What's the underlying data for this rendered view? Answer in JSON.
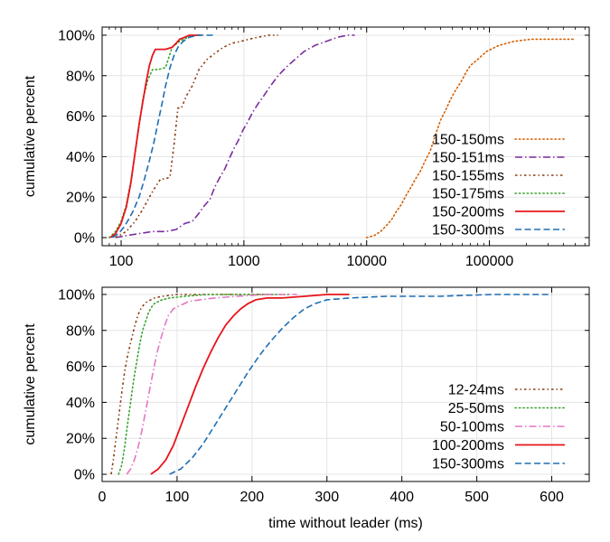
{
  "chart_data": [
    {
      "type": "line",
      "xscale": "log",
      "xlim": [
        70,
        650000
      ],
      "ylim": [
        -4,
        104
      ],
      "xticks": [
        100,
        1000,
        10000,
        100000
      ],
      "xtick_labels": [
        "100",
        "1000",
        "10000",
        "100000"
      ],
      "yticks": [
        0,
        20,
        40,
        60,
        80,
        100
      ],
      "ytick_labels": [
        "0%",
        "20%",
        "40%",
        "60%",
        "80%",
        "100%"
      ],
      "ylabel": "cumulative percent",
      "xlabel": "",
      "grid": true,
      "legend_position": "bottom-right",
      "series": [
        {
          "name": "150-150ms",
          "color": "#d55e00",
          "style": "dotted",
          "x": [
            10000,
            11500,
            13000,
            14500,
            16000,
            17500,
            19000,
            21000,
            23000,
            25000,
            27500,
            30000,
            33000,
            36000,
            40000,
            44000,
            48000,
            52000,
            56000,
            60000,
            65000,
            70000,
            80000,
            95000,
            120000,
            160000,
            220000,
            300000,
            400000,
            500000
          ],
          "y": [
            0,
            1,
            3,
            6,
            9,
            13,
            16,
            21,
            25,
            29,
            33,
            38,
            43,
            50,
            58,
            63,
            68,
            72,
            75,
            78,
            82,
            85,
            88,
            92,
            95,
            97,
            98,
            98,
            98,
            98
          ]
        },
        {
          "name": "150-151ms",
          "color": "#7b2da0",
          "style": "dashdot",
          "x": [
            90,
            110,
            140,
            180,
            230,
            280,
            330,
            380,
            430,
            480,
            530,
            580,
            640,
            700,
            760,
            830,
            900,
            980,
            1070,
            1180,
            1300,
            1450,
            1650,
            1900,
            2200,
            2600,
            3100,
            3800,
            4700,
            5800,
            7000,
            8000
          ],
          "y": [
            0,
            1,
            2,
            3,
            3,
            4,
            7,
            8,
            12,
            16,
            19,
            25,
            30,
            34,
            39,
            44,
            48,
            53,
            57,
            62,
            66,
            70,
            75,
            80,
            84,
            88,
            92,
            95,
            97,
            99,
            100,
            100
          ]
        },
        {
          "name": "150-155ms",
          "color": "#8b3a0e",
          "style": "dashdotted",
          "x": [
            90,
            110,
            130,
            150,
            170,
            190,
            210,
            230,
            250,
            270,
            290,
            310,
            340,
            380,
            430,
            500,
            580,
            680,
            800,
            950,
            1100,
            1300,
            1600,
            1900
          ],
          "y": [
            0,
            3,
            8,
            14,
            20,
            25,
            29,
            29,
            30,
            46,
            64,
            64,
            70,
            75,
            83,
            88,
            91,
            94,
            96,
            97,
            98,
            99,
            100,
            100
          ]
        },
        {
          "name": "150-175ms",
          "color": "#3aa52f",
          "style": "dotted",
          "x": [
            80,
            90,
            100,
            110,
            120,
            130,
            140,
            150,
            165,
            180,
            200,
            230,
            260,
            300,
            350,
            420
          ],
          "y": [
            0,
            3,
            8,
            16,
            28,
            42,
            55,
            68,
            78,
            83,
            83,
            84,
            94,
            97,
            99,
            100
          ]
        },
        {
          "name": "150-200ms",
          "color": "#e8141a",
          "style": "solid",
          "x": [
            82,
            90,
            100,
            110,
            120,
            130,
            140,
            150,
            160,
            170,
            180,
            190,
            200,
            230,
            260,
            280,
            300,
            330,
            360,
            400,
            450
          ],
          "y": [
            0,
            2,
            7,
            15,
            27,
            42,
            56,
            67,
            77,
            85,
            90,
            93,
            93,
            93,
            94,
            96,
            98,
            99,
            100,
            100,
            100
          ]
        },
        {
          "name": "150-300ms",
          "color": "#1f6eb4",
          "style": "dashed",
          "x": [
            85,
            95,
            105,
            115,
            125,
            140,
            155,
            170,
            185,
            200,
            215,
            230,
            250,
            270,
            290,
            320,
            360,
            420,
            500,
            580
          ],
          "y": [
            0,
            2,
            5,
            9,
            13,
            20,
            29,
            38,
            47,
            57,
            66,
            75,
            84,
            90,
            94,
            97,
            99,
            100,
            100,
            100
          ]
        }
      ]
    },
    {
      "type": "line",
      "xscale": "linear",
      "xlim": [
        0,
        650
      ],
      "ylim": [
        -4,
        104
      ],
      "xticks": [
        0,
        100,
        200,
        300,
        400,
        500,
        600
      ],
      "xtick_labels": [
        "0",
        "100",
        "200",
        "300",
        "400",
        "500",
        "600"
      ],
      "yticks": [
        0,
        20,
        40,
        60,
        80,
        100
      ],
      "ytick_labels": [
        "0%",
        "20%",
        "40%",
        "60%",
        "80%",
        "100%"
      ],
      "ylabel": "cumulative percent",
      "xlabel": "time without leader (ms)",
      "grid": true,
      "legend_position": "bottom-right",
      "series": [
        {
          "name": "12-24ms",
          "color": "#8b3a0e",
          "style": "dashdotted",
          "x": [
            12,
            15,
            18,
            21,
            24,
            27,
            30,
            34,
            38,
            42,
            46,
            50,
            55,
            60,
            70,
            80,
            100,
            130,
            170,
            230
          ],
          "y": [
            0,
            8,
            18,
            28,
            38,
            48,
            57,
            66,
            73,
            80,
            86,
            91,
            94,
            96,
            98,
            99,
            100,
            100,
            100,
            100
          ]
        },
        {
          "name": "25-50ms",
          "color": "#3aa52f",
          "style": "dotted",
          "x": [
            22,
            26,
            30,
            34,
            38,
            42,
            46,
            50,
            54,
            58,
            62,
            66,
            70,
            80,
            90,
            110,
            140,
            180,
            250
          ],
          "y": [
            0,
            5,
            15,
            28,
            40,
            52,
            62,
            72,
            80,
            85,
            90,
            93,
            95,
            97,
            98,
            99,
            100,
            100,
            100
          ]
        },
        {
          "name": "50-100ms",
          "color": "#e377c2",
          "style": "dashdot",
          "x": [
            33,
            38,
            43,
            48,
            53,
            58,
            63,
            68,
            73,
            78,
            83,
            88,
            95,
            105,
            115,
            130,
            150,
            180,
            220,
            260
          ],
          "y": [
            0,
            3,
            8,
            15,
            24,
            35,
            46,
            57,
            67,
            75,
            82,
            88,
            92,
            94,
            96,
            97,
            98,
            99,
            100,
            100
          ]
        },
        {
          "name": "100-200ms",
          "color": "#e8141a",
          "style": "solid",
          "x": [
            65,
            75,
            85,
            95,
            105,
            115,
            125,
            135,
            145,
            155,
            165,
            175,
            185,
            195,
            205,
            220,
            240,
            270,
            300,
            330
          ],
          "y": [
            0,
            3,
            8,
            16,
            27,
            38,
            49,
            59,
            68,
            76,
            83,
            88,
            92,
            95,
            97,
            98,
            98,
            99,
            100,
            100
          ]
        },
        {
          "name": "150-300ms",
          "color": "#1f6eb4",
          "style": "dashed",
          "x": [
            90,
            105,
            120,
            135,
            150,
            165,
            180,
            195,
            210,
            225,
            240,
            255,
            270,
            285,
            300,
            330,
            380,
            450,
            520,
            600
          ],
          "y": [
            0,
            3,
            9,
            17,
            27,
            37,
            47,
            57,
            66,
            74,
            81,
            87,
            92,
            95,
            97,
            98,
            99,
            99,
            100,
            100
          ]
        }
      ]
    }
  ]
}
